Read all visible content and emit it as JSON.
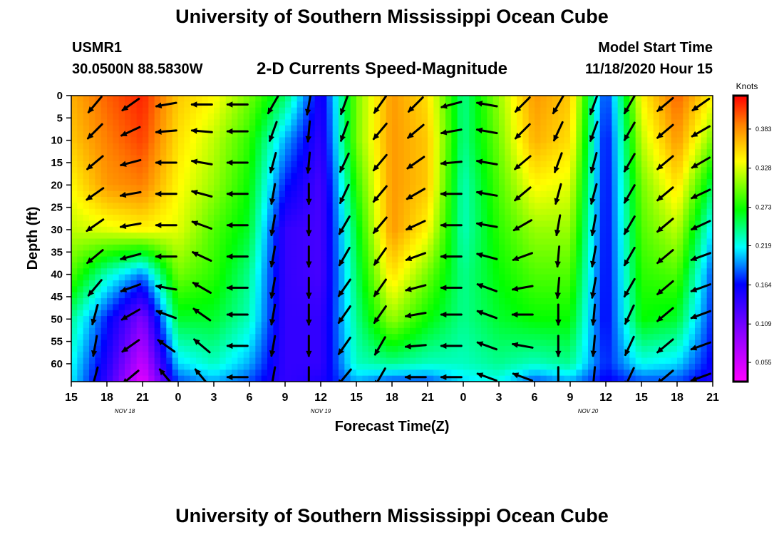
{
  "header": {
    "title": "University of Southern Mississippi Ocean Cube",
    "station_id": "USMR1",
    "station_coords": "30.0500N 88.5830W",
    "plot_title": "2-D Currents Speed-Magnitude",
    "model_label": "Model Start Time",
    "model_time": "11/18/2020 Hour 15"
  },
  "footer": {
    "title": "University of Southern Mississippi Ocean Cube"
  },
  "chart_data": {
    "type": "heatmap",
    "title": "2-D Currents Speed-Magnitude",
    "xlabel": "Forecast Time(Z)",
    "ylabel": "Depth (ft)",
    "x_ticks": [
      "15",
      "18",
      "21",
      "0",
      "3",
      "6",
      "9",
      "12",
      "15",
      "18",
      "21",
      "0",
      "3",
      "6",
      "9",
      "12",
      "15",
      "18",
      "21"
    ],
    "x_hours": [
      0,
      3,
      6,
      9,
      12,
      15,
      18,
      21,
      24,
      27,
      30,
      33,
      36,
      39,
      42,
      45,
      48,
      51,
      54
    ],
    "date_labels": [
      {
        "label": "NOV 18",
        "hour": 4.5
      },
      {
        "label": "NOV 19",
        "hour": 21
      },
      {
        "label": "NOV 20",
        "hour": 43.5
      }
    ],
    "y_ticks": [
      0,
      5,
      10,
      15,
      20,
      25,
      30,
      35,
      40,
      45,
      50,
      55,
      60
    ],
    "xlim": [
      0,
      54
    ],
    "ylim": [
      0,
      64
    ],
    "colorbar": {
      "label": "Knots",
      "ticks": [
        "0.383",
        "0.328",
        "0.273",
        "0.219",
        "0.164",
        "0.109",
        "0.055"
      ],
      "tick_values": [
        0.383,
        0.328,
        0.273,
        0.219,
        0.164,
        0.109,
        0.055
      ],
      "range": [
        0.028,
        0.43
      ]
    },
    "speed_hours": [
      0,
      3,
      6,
      9,
      12,
      15,
      18,
      21,
      24,
      27,
      30,
      33,
      36,
      39,
      42,
      45,
      48,
      51,
      54
    ],
    "speed_depths": [
      0,
      10,
      20,
      30,
      40,
      50,
      60,
      64
    ],
    "speed_knots": [
      [
        0.37,
        0.36,
        0.34,
        0.32,
        0.29,
        0.24,
        0.22,
        0.215
      ],
      [
        0.4,
        0.39,
        0.38,
        0.33,
        0.23,
        0.17,
        0.15,
        0.14
      ],
      [
        0.42,
        0.41,
        0.39,
        0.34,
        0.19,
        0.1,
        0.06,
        0.04
      ],
      [
        0.36,
        0.35,
        0.34,
        0.33,
        0.3,
        0.26,
        0.21,
        0.18
      ],
      [
        0.34,
        0.32,
        0.31,
        0.29,
        0.28,
        0.26,
        0.23,
        0.2
      ],
      [
        0.3,
        0.28,
        0.27,
        0.26,
        0.24,
        0.23,
        0.2,
        0.18
      ],
      [
        0.25,
        0.2,
        0.17,
        0.14,
        0.14,
        0.14,
        0.14,
        0.14
      ],
      [
        0.15,
        0.14,
        0.13,
        0.13,
        0.13,
        0.14,
        0.14,
        0.15
      ],
      [
        0.3,
        0.3,
        0.28,
        0.26,
        0.25,
        0.24,
        0.23,
        0.2
      ],
      [
        0.38,
        0.38,
        0.38,
        0.38,
        0.35,
        0.31,
        0.24,
        0.18
      ],
      [
        0.35,
        0.36,
        0.36,
        0.34,
        0.3,
        0.27,
        0.23,
        0.18
      ],
      [
        0.24,
        0.24,
        0.23,
        0.23,
        0.24,
        0.24,
        0.23,
        0.21
      ],
      [
        0.31,
        0.3,
        0.29,
        0.28,
        0.27,
        0.26,
        0.24,
        0.22
      ],
      [
        0.38,
        0.37,
        0.34,
        0.31,
        0.29,
        0.27,
        0.23,
        0.18
      ],
      [
        0.36,
        0.35,
        0.33,
        0.31,
        0.29,
        0.27,
        0.24,
        0.2
      ],
      [
        0.17,
        0.16,
        0.16,
        0.16,
        0.16,
        0.16,
        0.17,
        0.16
      ],
      [
        0.34,
        0.32,
        0.3,
        0.29,
        0.28,
        0.27,
        0.22,
        0.18
      ],
      [
        0.4,
        0.38,
        0.35,
        0.32,
        0.29,
        0.26,
        0.21,
        0.18
      ],
      [
        0.34,
        0.3,
        0.25,
        0.21,
        0.18,
        0.17,
        0.16,
        0.15
      ]
    ],
    "vector_depths": [
      2,
      8,
      15,
      22,
      29,
      36,
      43,
      49,
      56,
      63
    ],
    "vector_hours": [
      2,
      5,
      8,
      11,
      14,
      17,
      20,
      23,
      26,
      29,
      32,
      35,
      38,
      41,
      44,
      47,
      50,
      53
    ],
    "vector_dir_deg": [
      [
        220,
        225,
        230,
        235,
        235,
        230,
        220,
        195,
        190,
        195
      ],
      [
        235,
        245,
        255,
        260,
        260,
        255,
        250,
        240,
        235,
        230
      ],
      [
        260,
        265,
        270,
        270,
        270,
        270,
        280,
        290,
        305,
        320
      ],
      [
        270,
        275,
        280,
        285,
        290,
        295,
        300,
        305,
        310,
        320
      ],
      [
        270,
        270,
        270,
        270,
        270,
        270,
        270,
        270,
        270,
        270
      ],
      [
        210,
        200,
        195,
        190,
        190,
        190,
        190,
        190,
        190,
        190
      ],
      [
        190,
        185,
        185,
        180,
        180,
        180,
        180,
        180,
        180,
        180
      ],
      [
        200,
        200,
        205,
        205,
        210,
        210,
        215,
        215,
        215,
        220
      ],
      [
        215,
        220,
        220,
        220,
        220,
        215,
        215,
        215,
        210,
        210
      ],
      [
        225,
        230,
        235,
        240,
        245,
        250,
        255,
        260,
        265,
        270
      ],
      [
        255,
        260,
        265,
        270,
        270,
        270,
        270,
        270,
        270,
        270
      ],
      [
        280,
        280,
        280,
        280,
        280,
        285,
        290,
        290,
        290,
        290
      ],
      [
        225,
        225,
        230,
        230,
        240,
        250,
        260,
        270,
        280,
        290
      ],
      [
        210,
        205,
        200,
        195,
        190,
        185,
        185,
        180,
        180,
        180
      ],
      [
        200,
        200,
        195,
        195,
        190,
        190,
        190,
        185,
        185,
        185
      ],
      [
        210,
        210,
        210,
        210,
        210,
        210,
        210,
        205,
        205,
        205
      ],
      [
        230,
        230,
        230,
        230,
        230,
        230,
        230,
        230,
        230,
        230
      ],
      [
        235,
        240,
        240,
        245,
        245,
        250,
        250,
        250,
        250,
        250
      ]
    ]
  }
}
